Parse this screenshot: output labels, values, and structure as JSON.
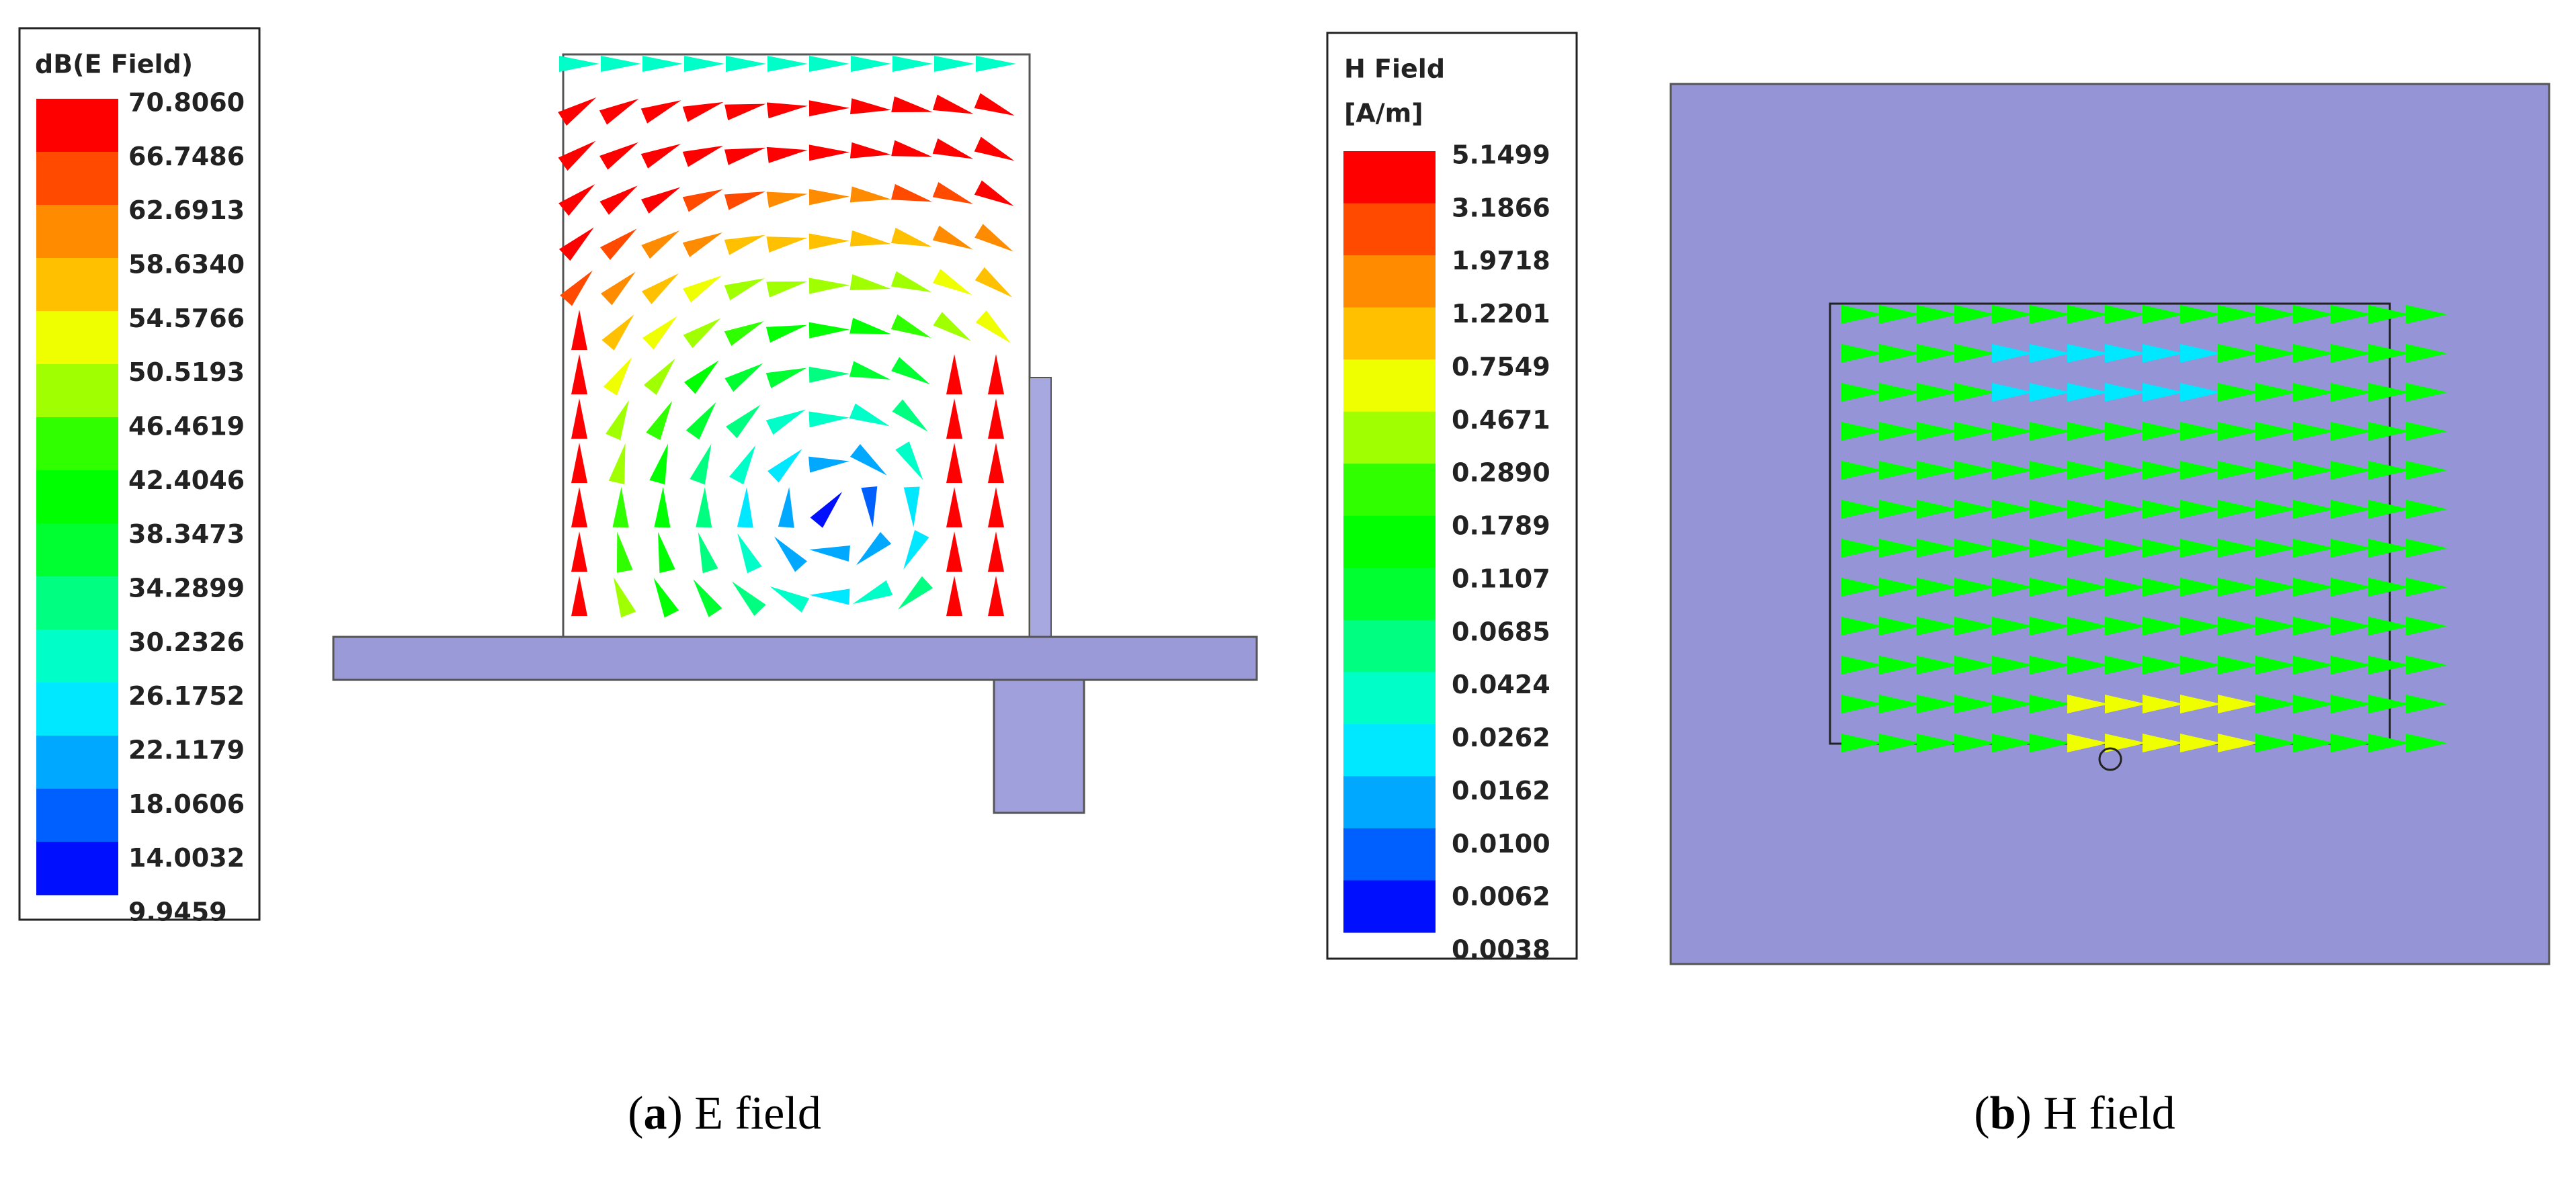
{
  "panels": [
    {
      "legend": {
        "title": [
          "dB(E Field)"
        ],
        "labels": [
          "70.8060",
          "66.7486",
          "62.6913",
          "58.6340",
          "54.5766",
          "50.5193",
          "46.4619",
          "42.4046",
          "38.3473",
          "34.2899",
          "30.2326",
          "26.1752",
          "22.1179",
          "18.0606",
          "14.0032",
          "9.9459"
        ],
        "colors": [
          "#ff0000",
          "#ff4a00",
          "#ff8c00",
          "#ffc000",
          "#f0ff00",
          "#a0ff00",
          "#30ff00",
          "#00ff00",
          "#00ff30",
          "#00ff80",
          "#00ffc8",
          "#00e8ff",
          "#00a8ff",
          "#0060ff",
          "#0010ff"
        ]
      },
      "caption": {
        "open": "(",
        "letter": "a",
        "rest": ") E field"
      }
    },
    {
      "legend": {
        "title": [
          "H Field",
          "[A/m]"
        ],
        "labels": [
          "5.1499",
          "3.1866",
          "1.9718",
          "1.2201",
          "0.7549",
          "0.4671",
          "0.2890",
          "0.1789",
          "0.1107",
          "0.0685",
          "0.0424",
          "0.0262",
          "0.0162",
          "0.0100",
          "0.0062",
          "0.0038"
        ],
        "colors": [
          "#ff0000",
          "#ff4a00",
          "#ff8c00",
          "#ffc000",
          "#f0ff00",
          "#a0ff00",
          "#30ff00",
          "#00ff00",
          "#00ff30",
          "#00ff80",
          "#00ffc8",
          "#00e8ff",
          "#00a8ff",
          "#0060ff",
          "#0010ff"
        ]
      },
      "caption": {
        "open": "(",
        "letter": "b",
        "rest": ") H field"
      }
    }
  ]
}
